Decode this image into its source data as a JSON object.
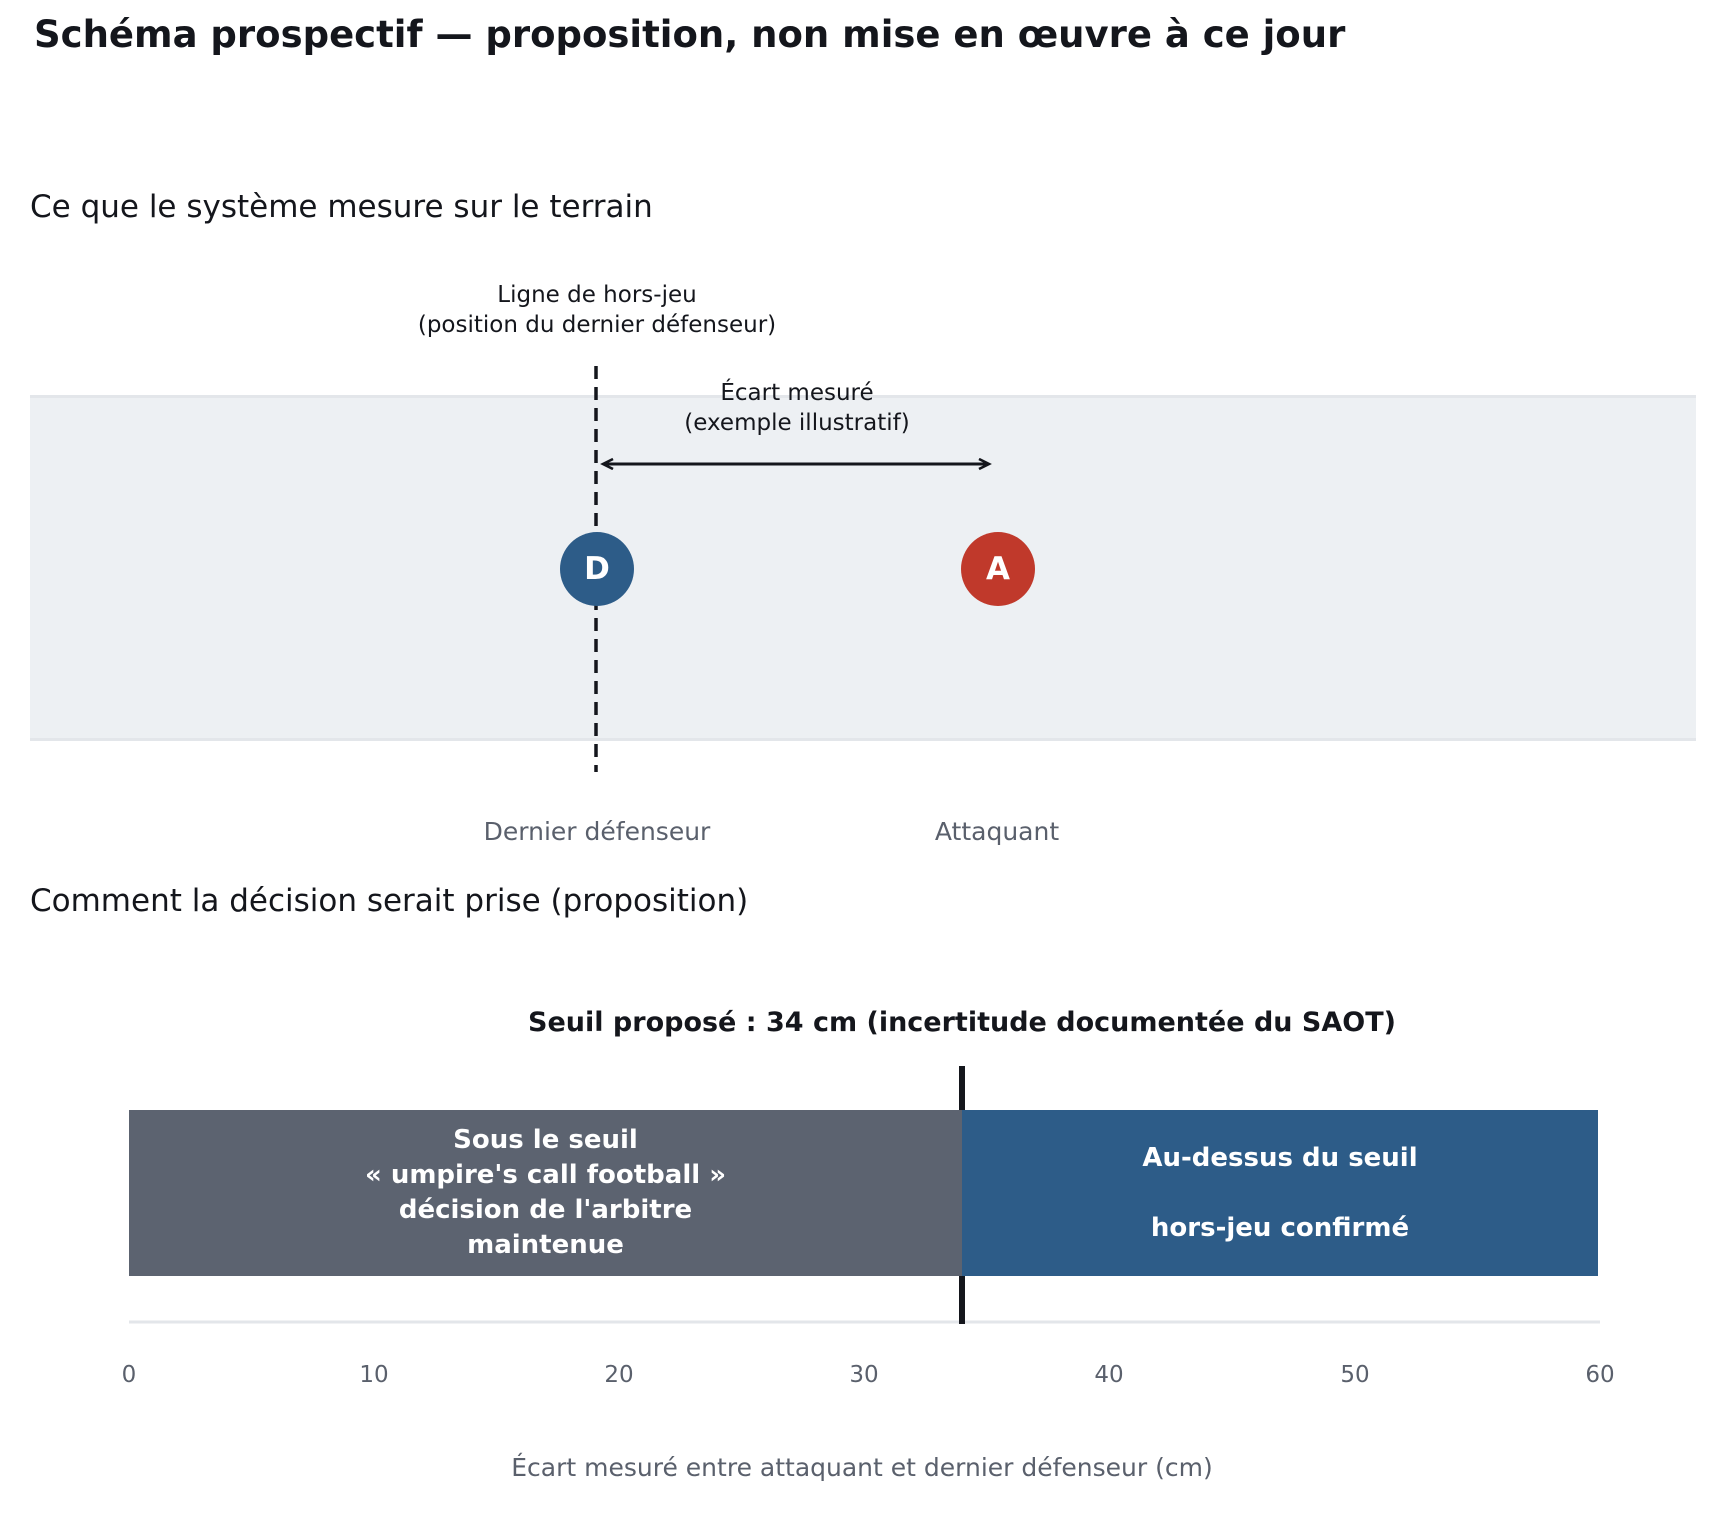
{
  "title": "Schéma prospectif — proposition, non mise en œuvre à ce jour",
  "field_section": {
    "heading": "Ce que le système mesure sur le terrain",
    "offside_line_label": [
      "Ligne de hors-jeu",
      "(position du dernier défenseur)"
    ],
    "gap_label": [
      "Écart mesuré",
      "(exemple illustratif)"
    ],
    "defender": {
      "marker": "D",
      "label": "Dernier défenseur",
      "color": "#2d5c88"
    },
    "attacker": {
      "marker": "A",
      "label": "Attaquant",
      "color": "#c0392b"
    }
  },
  "decision_section": {
    "heading": "Comment la décision serait prise (proposition)",
    "threshold_title": "Seuil proposé : 34 cm (incertitude documentée du SAOT)",
    "below_zone": [
      "Sous le seuil",
      "« umpire's call football »",
      "décision de l'arbitre",
      "maintenue"
    ],
    "above_zone": [
      "Au-dessus du seuil",
      "hors-jeu confirmé"
    ],
    "below_color": "#5c6370",
    "above_color": "#2d5c88"
  },
  "chart_data": {
    "type": "bar",
    "xlabel": "Écart mesuré entre attaquant et dernier défenseur (cm)",
    "xlim": [
      0,
      60
    ],
    "xticks": [
      "0",
      "10",
      "20",
      "30",
      "40",
      "50",
      "60"
    ],
    "threshold": 34,
    "segments": [
      {
        "name": "Sous le seuil",
        "from": 0,
        "to": 34
      },
      {
        "name": "Au-dessus du seuil",
        "from": 34,
        "to": 60
      }
    ]
  }
}
